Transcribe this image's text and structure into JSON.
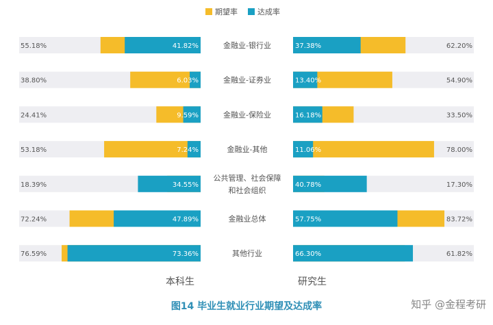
{
  "chart_data": {
    "type": "bar",
    "legend": [
      {
        "name": "期望率",
        "color": "#f5bc2a"
      },
      {
        "name": "达成率",
        "color": "#1aa0c3"
      }
    ],
    "legend_position": "top-center",
    "categories": [
      "金融业-银行业",
      "金融业-证券业",
      "金融业-保险业",
      "金融业-其他",
      "公共管理、社会保障和社会组织",
      "金融业总体",
      "其他行业"
    ],
    "category_lines": [
      [
        "金融业-银行业"
      ],
      [
        "金融业-证券业"
      ],
      [
        "金融业-保险业"
      ],
      [
        "金融业-其他"
      ],
      [
        "公共管理、社会保障",
        "和社会组织"
      ],
      [
        "金融业总体"
      ],
      [
        "其他行业"
      ]
    ],
    "xlim": [
      0,
      100
    ],
    "panels": [
      {
        "title": "本科生",
        "direction": "left",
        "expectation": [
          55.18,
          38.8,
          24.41,
          53.18,
          18.39,
          72.24,
          76.59
        ],
        "achievement": [
          41.82,
          6.03,
          9.59,
          7.24,
          34.55,
          47.89,
          73.36
        ],
        "expectation_labels": [
          "55.18%",
          "38.80%",
          "24.41%",
          "53.18%",
          "18.39%",
          "72.24%",
          "76.59%"
        ],
        "achievement_labels": [
          "41.82%",
          "6.03%",
          "9.59%",
          "7.24%",
          "34.55%",
          "47.89%",
          "73.36%"
        ]
      },
      {
        "title": "研究生",
        "direction": "right",
        "expectation": [
          62.2,
          54.9,
          33.5,
          78.0,
          17.3,
          83.72,
          61.82
        ],
        "achievement": [
          37.38,
          13.4,
          16.18,
          11.06,
          40.78,
          57.75,
          66.3
        ],
        "expectation_labels": [
          "62.20%",
          "54.90%",
          "33.50%",
          "78.00%",
          "17.30%",
          "83.72%",
          "61.82%"
        ],
        "achievement_labels": [
          "37.38%",
          "13.40%",
          "16.18%",
          "11.06%",
          "40.78%",
          "57.75%",
          "66.30%"
        ]
      }
    ],
    "colors": {
      "expectation": "#f5bc2a",
      "achievement": "#1aa0c3",
      "track": "#eeeef2"
    }
  },
  "caption": "图14  毕业生就业行业期望及达成率",
  "watermark": "知乎 @金程考研"
}
